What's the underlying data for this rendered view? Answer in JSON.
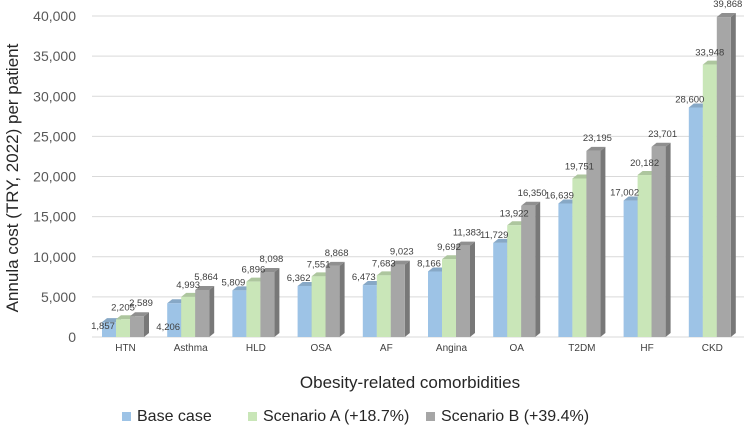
{
  "chart_data": {
    "type": "bar",
    "title": "",
    "xlabel": "Obesity-related comorbidities",
    "ylabel": "Annula cost (TRY, 2022) per patient",
    "ylim": [
      0,
      40000
    ],
    "yticks": [
      0,
      5000,
      10000,
      15000,
      20000,
      25000,
      30000,
      35000,
      40000
    ],
    "ytick_labels": [
      "0",
      "5,000",
      "10,000",
      "15,000",
      "20,000",
      "25,000",
      "30,000",
      "35,000",
      "40,000"
    ],
    "grid": true,
    "legend_position": "bottom",
    "categories": [
      "HTN",
      "Asthma",
      "HLD",
      "OSA",
      "AF",
      "Angina",
      "OA",
      "T2DM",
      "HF",
      "CKD"
    ],
    "series": [
      {
        "name": "Base case",
        "color": "#9dc3e6",
        "values": [
          1857,
          4206,
          5809,
          6362,
          6473,
          8166,
          11729,
          16639,
          17002,
          28600
        ],
        "labels": [
          "1,857",
          "4,206",
          "5,809",
          "6,362",
          "6,473",
          "8,166",
          "11,729",
          "16,639",
          "17,002",
          "28,600"
        ]
      },
      {
        "name": "Scenario A (+18.7%)",
        "color": "#c9e6b8",
        "values": [
          2205,
          4993,
          6896,
          7551,
          7683,
          9692,
          13922,
          19751,
          20182,
          33948
        ],
        "labels": [
          "2,205",
          "4,993",
          "6,896",
          "7,551",
          "7,683",
          "9,692",
          "13,922",
          "19,751",
          "20,182",
          "33,948"
        ]
      },
      {
        "name": "Scenario B (+39.4%)",
        "color": "#a6a6a6",
        "values": [
          2589,
          5864,
          8098,
          8868,
          9023,
          11383,
          16350,
          23195,
          23701,
          39868
        ],
        "labels": [
          "2,589",
          "5,864",
          "8,098",
          "8,868",
          "9,023",
          "11,383",
          "16,350",
          "23,195",
          "23,701",
          "39,868"
        ]
      }
    ]
  }
}
